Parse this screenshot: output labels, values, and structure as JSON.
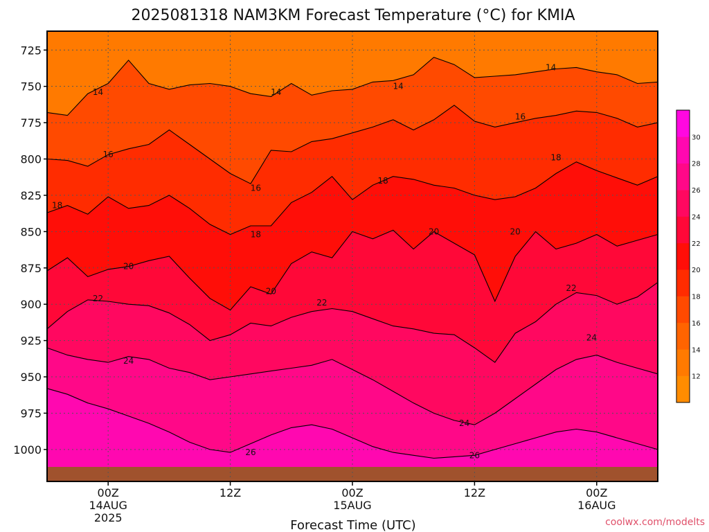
{
  "header": {
    "title": "2025081318 NAM3KM Forecast Temperature (°C) for KMIA"
  },
  "footer": {
    "credit": "coolwx.com/modelts"
  },
  "chart_data": {
    "type": "heatmap",
    "title": "2025081318 NAM3KM Forecast Temperature (°C) for KMIA",
    "xlabel": "Forecast Time (UTC)",
    "ylabel": "",
    "x_ticks": [
      {
        "hour": 6,
        "lines": [
          "00Z",
          "14AUG",
          "2025"
        ]
      },
      {
        "hour": 18,
        "lines": [
          "12Z"
        ]
      },
      {
        "hour": 30,
        "lines": [
          "00Z",
          "15AUG"
        ]
      },
      {
        "hour": 42,
        "lines": [
          "12Z"
        ]
      },
      {
        "hour": 54,
        "lines": [
          "00Z",
          "16AUG"
        ]
      }
    ],
    "xlim": [
      0,
      60
    ],
    "y_ticks": [
      725,
      750,
      775,
      800,
      825,
      850,
      875,
      900,
      925,
      950,
      975,
      1000
    ],
    "ylim": [
      712,
      1022
    ],
    "y_axis": "pressure (hPa), increasing downward",
    "grid": true,
    "ground_level_hpa": 1012,
    "colorbar": {
      "levels": [
        10,
        12,
        14,
        16,
        18,
        20,
        22,
        24,
        26,
        28,
        30,
        32
      ],
      "tick_labels": [
        "12",
        "14",
        "16",
        "18",
        "20",
        "22",
        "24",
        "26",
        "28",
        "30"
      ],
      "colors": [
        "#ff8c00",
        "#ff7a00",
        "#ff6400",
        "#ff4a00",
        "#ff2c00",
        "#ff0e08",
        "#ff0838",
        "#ff0860",
        "#ff0888",
        "#ff08b0",
        "#ff08e0"
      ]
    },
    "contours": [
      {
        "level": 14,
        "label": "14",
        "label_positions": [
          [
            5.0,
            754
          ],
          [
            22.5,
            754
          ],
          [
            34.5,
            750
          ],
          [
            49.5,
            737
          ]
        ],
        "hours": [
          0,
          2,
          4,
          6,
          8,
          10,
          12,
          14,
          16,
          18,
          20,
          22,
          24,
          26,
          28,
          30,
          32,
          34,
          36,
          38,
          40,
          42,
          44,
          46,
          48,
          50,
          52,
          54,
          56,
          58,
          60
        ],
        "hpa": [
          768,
          770,
          755,
          748,
          732,
          748,
          752,
          749,
          748,
          750,
          755,
          757,
          748,
          756,
          753,
          752,
          747,
          746,
          742,
          730,
          735,
          744,
          743,
          742,
          740,
          738,
          737,
          740,
          742,
          748,
          747
        ]
      },
      {
        "level": 16,
        "label": "16",
        "label_positions": [
          [
            6.0,
            797
          ],
          [
            20.5,
            820
          ],
          [
            46.5,
            771
          ]
        ],
        "hours": [
          0,
          2,
          4,
          6,
          8,
          10,
          12,
          14,
          16,
          18,
          20,
          22,
          24,
          26,
          28,
          30,
          32,
          34,
          36,
          38,
          40,
          42,
          44,
          46,
          48,
          50,
          52,
          54,
          56,
          58,
          60
        ],
        "hpa": [
          800,
          801,
          805,
          797,
          793,
          790,
          780,
          790,
          800,
          810,
          817,
          794,
          795,
          788,
          786,
          782,
          778,
          773,
          780,
          773,
          763,
          774,
          778,
          775,
          772,
          770,
          767,
          768,
          772,
          778,
          775
        ]
      },
      {
        "level": 18,
        "label": "18",
        "label_positions": [
          [
            1.0,
            832
          ],
          [
            20.5,
            852
          ],
          [
            33.0,
            815
          ],
          [
            50.0,
            799
          ]
        ],
        "hours": [
          0,
          2,
          4,
          6,
          8,
          10,
          12,
          14,
          16,
          18,
          20,
          22,
          24,
          26,
          28,
          30,
          32,
          34,
          36,
          38,
          40,
          42,
          44,
          46,
          48,
          50,
          52,
          54,
          56,
          58,
          60
        ],
        "hpa": [
          837,
          832,
          838,
          826,
          834,
          832,
          825,
          834,
          845,
          852,
          846,
          846,
          830,
          823,
          812,
          828,
          818,
          812,
          814,
          818,
          820,
          825,
          828,
          826,
          820,
          810,
          802,
          808,
          813,
          818,
          812
        ]
      },
      {
        "level": 20,
        "label": "20",
        "label_positions": [
          [
            8.0,
            874
          ],
          [
            22.0,
            891
          ],
          [
            38.0,
            850
          ],
          [
            46.0,
            850
          ]
        ],
        "hours": [
          0,
          2,
          4,
          6,
          8,
          10,
          12,
          14,
          16,
          18,
          20,
          22,
          24,
          26,
          28,
          30,
          32,
          34,
          36,
          38,
          40,
          42,
          44,
          46,
          48,
          50,
          52,
          54,
          56,
          58,
          60
        ],
        "hpa": [
          877,
          868,
          881,
          876,
          874,
          870,
          867,
          882,
          896,
          904,
          888,
          893,
          872,
          864,
          868,
          850,
          855,
          849,
          862,
          850,
          858,
          866,
          898,
          867,
          850,
          862,
          858,
          852,
          860,
          856,
          852
        ]
      },
      {
        "level": 22,
        "label": "22",
        "label_positions": [
          [
            5.0,
            896
          ],
          [
            27.0,
            899
          ],
          [
            51.5,
            889
          ]
        ],
        "hours": [
          0,
          2,
          4,
          6,
          8,
          10,
          12,
          14,
          16,
          18,
          20,
          22,
          24,
          26,
          28,
          30,
          32,
          34,
          36,
          38,
          40,
          42,
          44,
          46,
          48,
          50,
          52,
          54,
          56,
          58,
          60
        ],
        "hpa": [
          917,
          905,
          897,
          898,
          900,
          901,
          906,
          914,
          925,
          921,
          913,
          915,
          909,
          905,
          903,
          905,
          910,
          915,
          917,
          920,
          921,
          930,
          940,
          920,
          912,
          900,
          892,
          894,
          900,
          895,
          885
        ]
      },
      {
        "level": 24,
        "label": "24",
        "label_positions": [
          [
            8.0,
            939
          ],
          [
            41.0,
            982
          ],
          [
            53.5,
            923
          ]
        ],
        "hours": [
          0,
          2,
          4,
          6,
          8,
          10,
          12,
          14,
          16,
          18,
          20,
          22,
          24,
          26,
          28,
          30,
          32,
          34,
          36,
          38,
          40,
          42,
          44,
          46,
          48,
          50,
          52,
          54,
          56,
          58,
          60
        ],
        "hpa": [
          930,
          935,
          938,
          940,
          936,
          938,
          944,
          947,
          952,
          950,
          948,
          946,
          944,
          942,
          938,
          945,
          952,
          960,
          968,
          975,
          980,
          983,
          975,
          965,
          955,
          945,
          938,
          935,
          940,
          944,
          948
        ]
      },
      {
        "level": 26,
        "label": "26",
        "label_positions": [
          [
            20.0,
            1002
          ],
          [
            42.0,
            1004
          ]
        ],
        "hours": [
          0,
          2,
          4,
          6,
          8,
          10,
          12,
          14,
          16,
          18,
          20,
          22,
          24,
          26,
          28,
          30,
          32,
          34,
          36,
          38,
          40,
          42,
          44,
          46,
          48,
          50,
          52,
          54,
          56,
          58,
          60
        ],
        "hpa": [
          958,
          962,
          968,
          972,
          977,
          982,
          988,
          995,
          1000,
          1002,
          996,
          990,
          985,
          983,
          986,
          992,
          998,
          1002,
          1004,
          1006,
          1005,
          1004,
          1000,
          996,
          992,
          988,
          986,
          988,
          992,
          996,
          1000
        ]
      }
    ]
  }
}
